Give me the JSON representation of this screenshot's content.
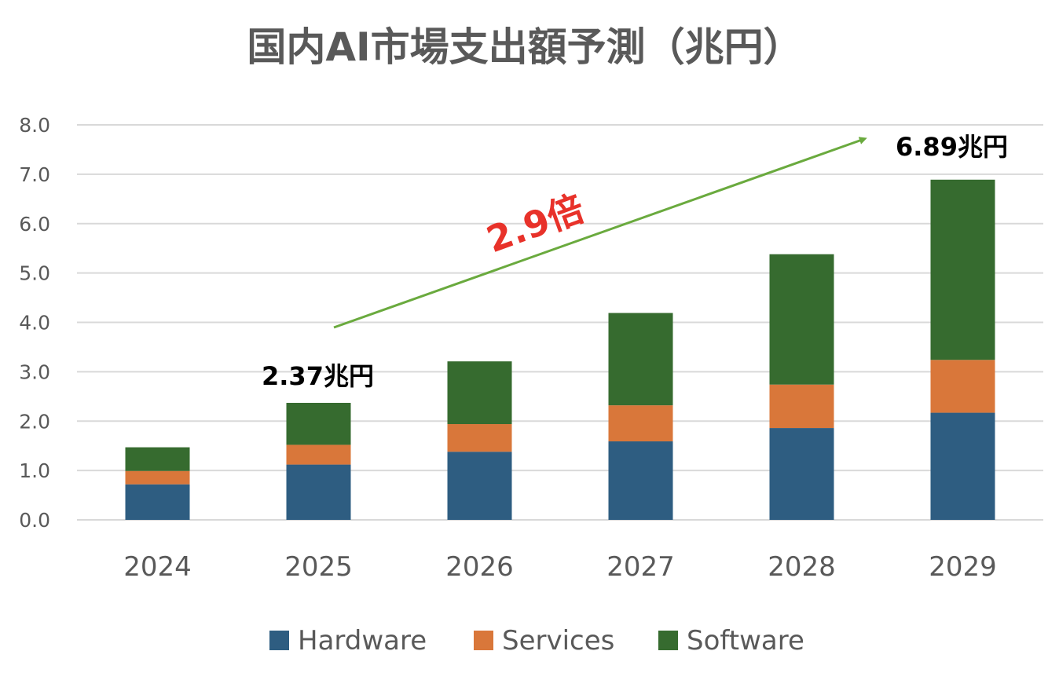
{
  "chart_data": {
    "type": "bar",
    "stacked": true,
    "title": "国内AI市場支出額予測（兆円）",
    "xlabel": "",
    "ylabel": "",
    "categories": [
      "2024",
      "2025",
      "2026",
      "2027",
      "2028",
      "2029"
    ],
    "series": [
      {
        "name": "Hardware",
        "color": "#2e5d81",
        "values": [
          0.72,
          1.12,
          1.38,
          1.59,
          1.86,
          2.17
        ]
      },
      {
        "name": "Services",
        "color": "#d9773a",
        "values": [
          0.27,
          0.4,
          0.56,
          0.73,
          0.88,
          1.07
        ]
      },
      {
        "name": "Software",
        "color": "#366b2f",
        "values": [
          0.48,
          0.85,
          1.27,
          1.87,
          2.64,
          3.65
        ]
      }
    ],
    "ylim": [
      0,
      8
    ],
    "yticks": [
      "0.0",
      "1.0",
      "2.0",
      "3.0",
      "4.0",
      "5.0",
      "6.0",
      "7.0",
      "8.0"
    ],
    "grid": true,
    "legend_position": "bottom",
    "annotations": {
      "total_2025": "2.37兆円",
      "total_2029": "6.89兆円",
      "growth_label": "2.9倍",
      "arrow_color": "#6aaa3e"
    }
  }
}
